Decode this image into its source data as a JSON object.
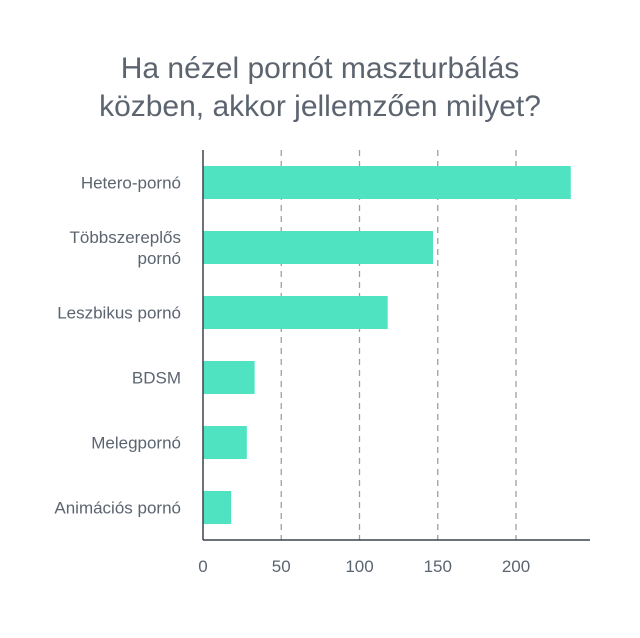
{
  "chart_data": {
    "type": "bar",
    "orientation": "horizontal",
    "title_lines": [
      "Ha nézel pornót maszturbálás",
      "közben, akkor jellemzően milyet?"
    ],
    "categories": [
      [
        "Hetero-pornó"
      ],
      [
        "Többszereplős",
        "pornó"
      ],
      [
        "Leszbikus pornó"
      ],
      [
        "BDSM"
      ],
      [
        "Melegpornó"
      ],
      [
        "Animációs pornó"
      ]
    ],
    "values": [
      235,
      147,
      118,
      33,
      28,
      18
    ],
    "xlim": [
      0,
      245
    ],
    "xticks": [
      0,
      50,
      100,
      150,
      200
    ],
    "grid": true,
    "xlabel": "",
    "ylabel": "",
    "colors": {
      "bar": "#4fe3c1",
      "grid": "#9aa0a6",
      "axis": "#3d444d",
      "text": "#5c6470"
    }
  }
}
